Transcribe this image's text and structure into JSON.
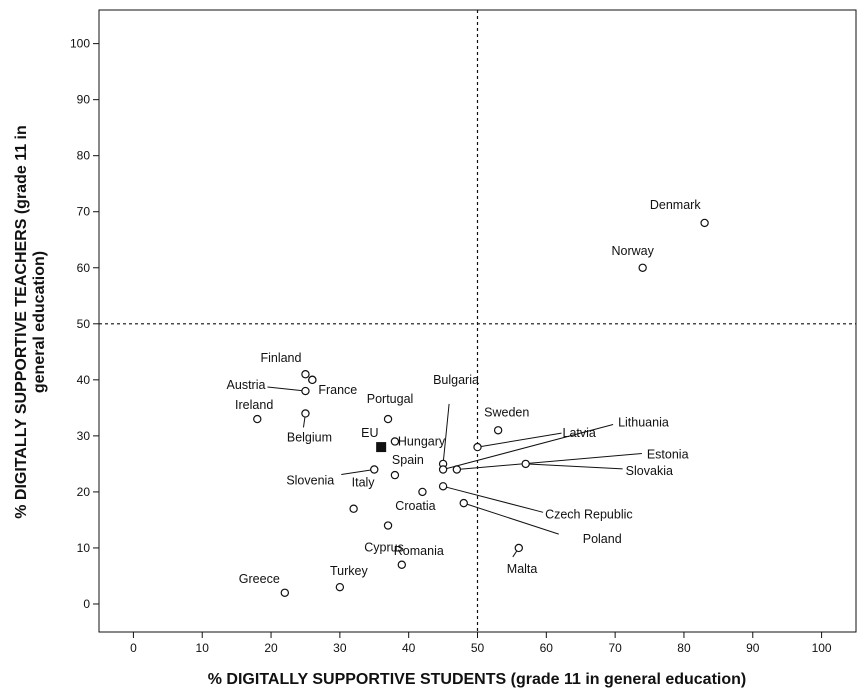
{
  "chart_data": {
    "type": "scatter",
    "xlabel": "% DIGITALLY SUPPORTIVE STUDENTS (grade 11 in general education)",
    "ylabel_lines": [
      "% DIGITALLY SUPPORTIVE TEACHERS (grade 11 in",
      "general education)"
    ],
    "xlim": [
      -5,
      105
    ],
    "ylim": [
      -5,
      106
    ],
    "xticks": [
      "0",
      "10",
      "20",
      "30",
      "40",
      "50",
      "60",
      "70",
      "80",
      "90",
      "100"
    ],
    "yticks": [
      "0",
      "10",
      "20",
      "30",
      "40",
      "50",
      "60",
      "70",
      "80",
      "90",
      "100"
    ],
    "reference_lines": {
      "x": 50,
      "y": 50
    },
    "grid": false,
    "points": [
      {
        "label": "Denmark",
        "x": 83,
        "y": 68
      },
      {
        "label": "Norway",
        "x": 74,
        "y": 60
      },
      {
        "label": "Finland",
        "x": 25,
        "y": 41
      },
      {
        "label": "",
        "x": 26,
        "y": 40
      },
      {
        "label": "Austria",
        "x": 25,
        "y": 38
      },
      {
        "label": "France",
        "x": 26,
        "y": 40
      },
      {
        "label": "Ireland",
        "x": 18,
        "y": 33
      },
      {
        "label": "Belgium",
        "x": 25,
        "y": 34
      },
      {
        "label": "Portugal",
        "x": 37,
        "y": 33
      },
      {
        "label": "Bulgaria",
        "x": 45,
        "y": 25
      },
      {
        "label": "Sweden",
        "x": 53,
        "y": 31
      },
      {
        "label": "Latvia",
        "x": 50,
        "y": 28
      },
      {
        "label": "Lithuania",
        "x": 45,
        "y": 24
      },
      {
        "label": "Estonia",
        "x": 47,
        "y": 24
      },
      {
        "label": "Slovakia",
        "x": 57,
        "y": 25
      },
      {
        "label": "EU",
        "x": 36,
        "y": 28,
        "marker": "square"
      },
      {
        "label": "Hungary",
        "x": 38,
        "y": 29
      },
      {
        "label": "Spain",
        "x": 38,
        "y": 23
      },
      {
        "label": "Slovenia",
        "x": 35,
        "y": 24
      },
      {
        "label": "Italy",
        "x": 32,
        "y": 17
      },
      {
        "label": "Croatia",
        "x": 42,
        "y": 20
      },
      {
        "label": "Czech Republic",
        "x": 45,
        "y": 21
      },
      {
        "label": "Poland",
        "x": 48,
        "y": 18
      },
      {
        "label": "Cyprus",
        "x": 37,
        "y": 14
      },
      {
        "label": "Romania",
        "x": 39,
        "y": 7
      },
      {
        "label": "Malta",
        "x": 56,
        "y": 10
      },
      {
        "label": "Greece",
        "x": 22,
        "y": 2
      },
      {
        "label": "Turkey",
        "x": 30,
        "y": 3
      }
    ]
  }
}
